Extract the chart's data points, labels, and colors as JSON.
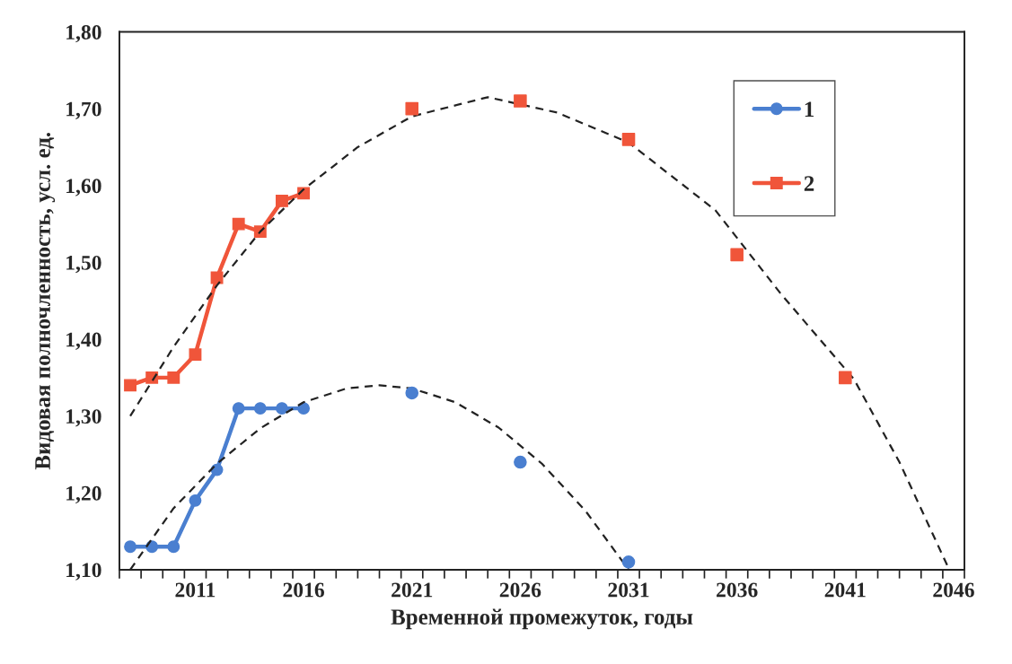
{
  "chart_data": {
    "type": "line",
    "xlabel": "Временной промежуток, годы",
    "ylabel": "Видовая полночленность, усл. ед.",
    "xlim": [
      2007.5,
      2046.5
    ],
    "xticks": [
      {
        "value": 2011,
        "label": "2011"
      },
      {
        "value": 2016,
        "label": "2016"
      },
      {
        "value": 2021,
        "label": "2021"
      },
      {
        "value": 2026,
        "label": "2026"
      },
      {
        "value": 2031,
        "label": "2031"
      },
      {
        "value": 2036,
        "label": "2036"
      },
      {
        "value": 2041,
        "label": "2041"
      },
      {
        "value": 2046,
        "label": "2046"
      },
      {
        "value": 2007.5,
        "label": null
      },
      {
        "value": 2008.5,
        "label": null
      },
      {
        "value": 2009.5,
        "label": null
      },
      {
        "value": 2010.5,
        "label": null
      },
      {
        "value": 2011.5,
        "label": null
      },
      {
        "value": 2012.5,
        "label": null
      },
      {
        "value": 2013.5,
        "label": null
      },
      {
        "value": 2014.5,
        "label": null
      },
      {
        "value": 2015.5,
        "label": null
      },
      {
        "value": 2016.5,
        "label": null
      },
      {
        "value": 2017.5,
        "label": null
      },
      {
        "value": 2018.5,
        "label": null
      },
      {
        "value": 2019.5,
        "label": null
      },
      {
        "value": 2020.5,
        "label": null
      },
      {
        "value": 2021.5,
        "label": null
      },
      {
        "value": 2022.5,
        "label": null
      },
      {
        "value": 2023.5,
        "label": null
      },
      {
        "value": 2024.5,
        "label": null
      },
      {
        "value": 2025.5,
        "label": null
      },
      {
        "value": 2026.5,
        "label": null
      },
      {
        "value": 2027.5,
        "label": null
      },
      {
        "value": 2028.5,
        "label": null
      },
      {
        "value": 2029.5,
        "label": null
      },
      {
        "value": 2030.5,
        "label": null
      },
      {
        "value": 2031.5,
        "label": null
      },
      {
        "value": 2032.5,
        "label": null
      },
      {
        "value": 2033.5,
        "label": null
      },
      {
        "value": 2034.5,
        "label": null
      },
      {
        "value": 2035.5,
        "label": null
      },
      {
        "value": 2036.5,
        "label": null
      },
      {
        "value": 2037.5,
        "label": null
      },
      {
        "value": 2038.5,
        "label": null
      },
      {
        "value": 2039.5,
        "label": null
      },
      {
        "value": 2040.5,
        "label": null
      },
      {
        "value": 2041.5,
        "label": null
      },
      {
        "value": 2042.5,
        "label": null
      },
      {
        "value": 2043.5,
        "label": null
      },
      {
        "value": 2044.5,
        "label": null
      },
      {
        "value": 2045.5,
        "label": null
      },
      {
        "value": 2046.5,
        "label": null
      }
    ],
    "ylim": [
      1.1,
      1.8
    ],
    "yticks": [
      {
        "value": 1.1,
        "label": "1,10"
      },
      {
        "value": 1.2,
        "label": "1,20"
      },
      {
        "value": 1.3,
        "label": "1,30"
      },
      {
        "value": 1.4,
        "label": "1,40"
      },
      {
        "value": 1.5,
        "label": "1,50"
      },
      {
        "value": 1.6,
        "label": "1,60"
      },
      {
        "value": 1.7,
        "label": "1,70"
      },
      {
        "value": 1.8,
        "label": "1,80"
      }
    ],
    "grid": false,
    "legend": "top right",
    "series": [
      {
        "name": "1",
        "color": "#4a7fd0",
        "marker": "circle",
        "line_style": "solid",
        "x": [
          2008,
          2009,
          2010,
          2011,
          2012,
          2013,
          2014,
          2015,
          2016
        ],
        "values": [
          1.13,
          1.13,
          1.13,
          1.19,
          1.23,
          1.31,
          1.31,
          1.31,
          1.31
        ]
      },
      {
        "type": "scatter",
        "color": "#4a7fd0",
        "marker": "circle",
        "x": [
          2021,
          2026,
          2031
        ],
        "values": [
          1.33,
          1.24,
          1.11
        ]
      },
      {
        "name": "2",
        "color": "#f0553a",
        "marker": "square",
        "line_style": "solid",
        "x": [
          2008,
          2009,
          2010,
          2011,
          2012,
          2013,
          2014,
          2015,
          2016
        ],
        "values": [
          1.34,
          1.35,
          1.35,
          1.38,
          1.48,
          1.55,
          1.54,
          1.58,
          1.59
        ]
      },
      {
        "type": "scatter",
        "color": "#f0553a",
        "marker": "square",
        "x": [
          2021,
          2026,
          2031,
          2036,
          2041
        ],
        "values": [
          1.7,
          1.71,
          1.66,
          1.51,
          1.35
        ]
      },
      {
        "color": "#222222",
        "marker": "none",
        "line_style": "dashed",
        "x": [
          2008,
          2010,
          2012,
          2014,
          2016,
          2018,
          2019.5,
          2021,
          2023,
          2025,
          2027,
          2029,
          2031
        ],
        "values": [
          1.1,
          1.18,
          1.238,
          1.284,
          1.318,
          1.336,
          1.34,
          1.336,
          1.318,
          1.285,
          1.238,
          1.177,
          1.1
        ]
      },
      {
        "color": "#222222",
        "marker": "none",
        "line_style": "dashed",
        "x": [
          2008,
          2010,
          2012,
          2014,
          2016,
          2018.5,
          2021,
          2024.5,
          2027.7,
          2031,
          2035,
          2038,
          2041.4,
          2043.5,
          2045.8
        ],
        "values": [
          1.3,
          1.39,
          1.47,
          1.54,
          1.595,
          1.65,
          1.69,
          1.715,
          1.695,
          1.656,
          1.568,
          1.46,
          1.348,
          1.24,
          1.1
        ]
      }
    ]
  }
}
